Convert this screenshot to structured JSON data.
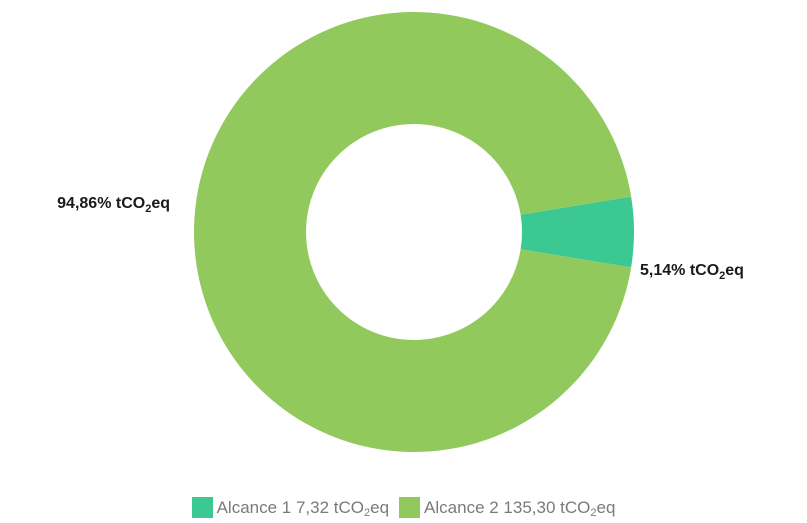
{
  "chart_data": {
    "type": "pie",
    "title": "",
    "slices": [
      {
        "name": "Alcance 1",
        "value": 7.32,
        "percent": 5.14,
        "label_text": "5,14% tCO",
        "label_sub": "2",
        "label_suffix": "eq",
        "color": "#3cc892"
      },
      {
        "name": "Alcance 2",
        "value": 135.3,
        "percent": 94.86,
        "label_text": "94,86% tCO",
        "label_sub": "2",
        "label_suffix": "eq",
        "color": "#92c95c"
      }
    ],
    "legend": {
      "placement": "bottom",
      "items": [
        {
          "text": "Alcance 1 7,32 tCO",
          "sub": "2",
          "suffix": "eq",
          "color": "#3cc892"
        },
        {
          "text": "Alcance 2 135,30 tCO",
          "sub": "2",
          "suffix": "eq",
          "color": "#92c95c"
        }
      ]
    }
  }
}
